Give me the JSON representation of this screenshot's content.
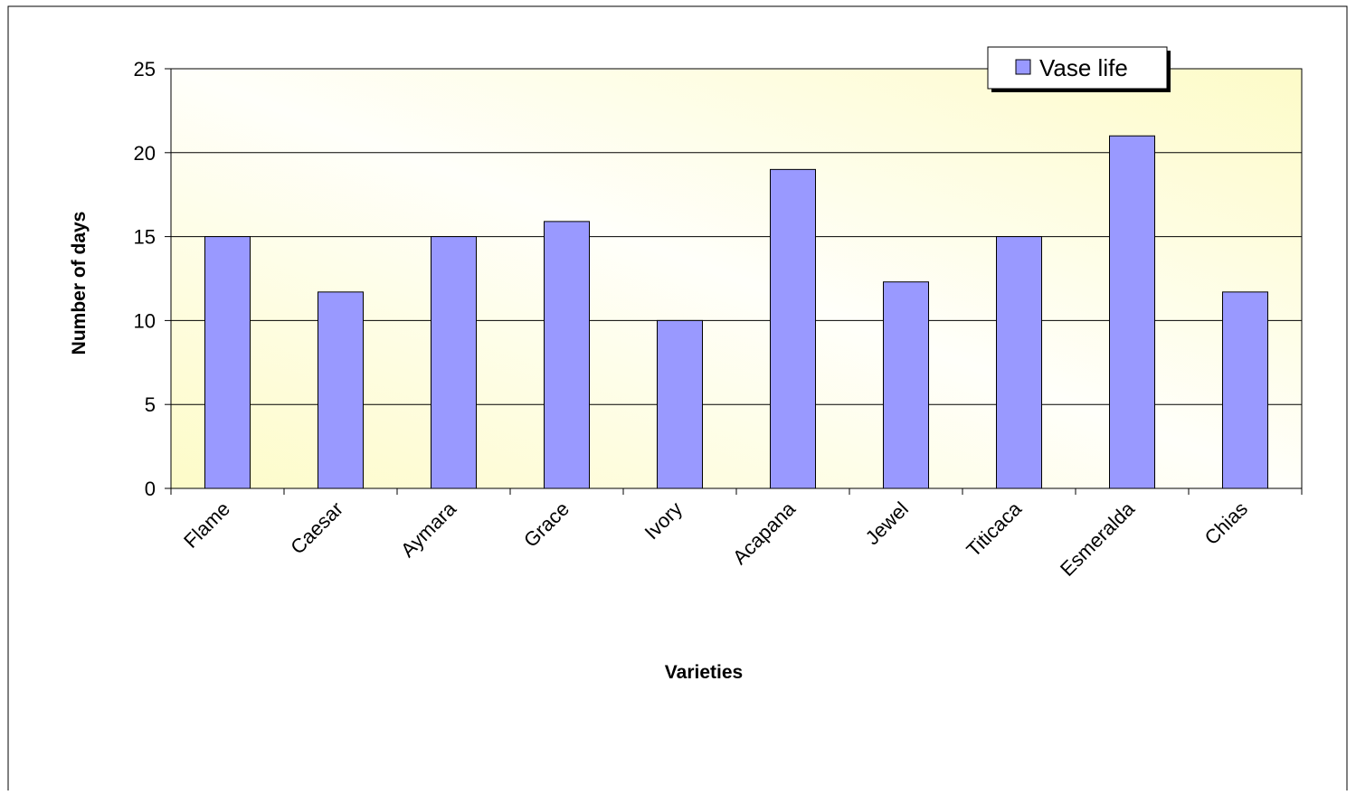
{
  "chart_data": {
    "type": "bar",
    "title": "",
    "xlabel": "Varieties",
    "ylabel": "Number of days",
    "categories": [
      "Flame",
      "Caesar",
      "Aymara",
      "Grace",
      "Ivory",
      "Acapana",
      "Jewel",
      "Titicaca",
      "Esmeralda",
      "Chias"
    ],
    "series": [
      {
        "name": "Vase life",
        "values": [
          15,
          11.7,
          15,
          15.9,
          10,
          19,
          12.3,
          15,
          21,
          11.7
        ]
      }
    ],
    "ylim": [
      0,
      25
    ],
    "yticks": [
      0,
      5,
      10,
      15,
      20,
      25
    ],
    "grid": true,
    "legend_position": "top-right",
    "colors": {
      "bar_fill": "#9999ff",
      "bar_stroke": "#000000",
      "plot_bg_light": "#fffffa",
      "plot_bg_warm": "#fdfbc8",
      "gridline": "#000000",
      "border": "#000000"
    }
  }
}
